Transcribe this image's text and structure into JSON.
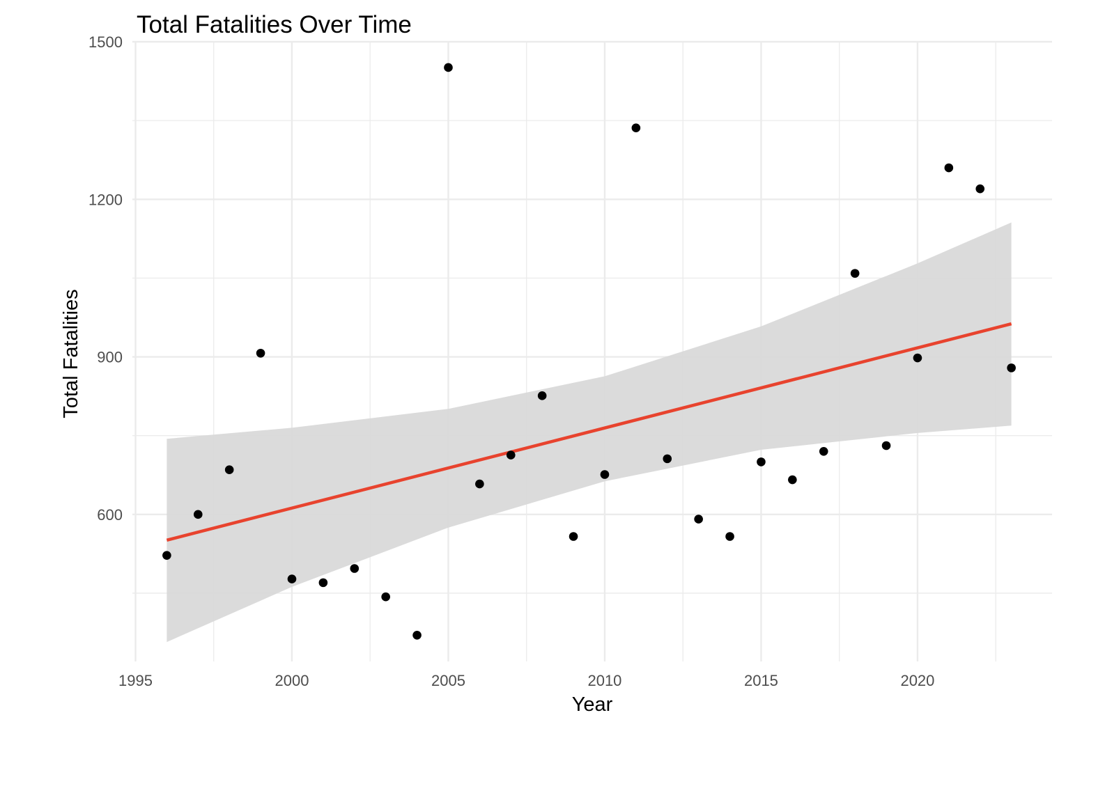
{
  "chart_data": {
    "type": "scatter",
    "title": "Total Fatalities Over Time",
    "xlabel": "Year",
    "ylabel": "Total Fatalities",
    "xlim": [
      1994.9,
      2024.3
    ],
    "ylim": [
      320,
      1500
    ],
    "x_ticks": [
      1995,
      2000,
      2005,
      2010,
      2015,
      2020
    ],
    "y_ticks": [
      600,
      900,
      1200,
      1500
    ],
    "grid": true,
    "legend": "none",
    "colors": {
      "points": "#000000",
      "trend": "#e8432e",
      "band": "#d9d9d9",
      "grid": "#ebebeb"
    },
    "points": [
      {
        "x": 1996,
        "y": 522
      },
      {
        "x": 1997,
        "y": 600
      },
      {
        "x": 1998,
        "y": 685
      },
      {
        "x": 1999,
        "y": 907
      },
      {
        "x": 2000,
        "y": 477
      },
      {
        "x": 2001,
        "y": 470
      },
      {
        "x": 2002,
        "y": 497
      },
      {
        "x": 2003,
        "y": 443
      },
      {
        "x": 2004,
        "y": 370
      },
      {
        "x": 2005,
        "y": 1451
      },
      {
        "x": 2006,
        "y": 658
      },
      {
        "x": 2007,
        "y": 713
      },
      {
        "x": 2008,
        "y": 826
      },
      {
        "x": 2009,
        "y": 558
      },
      {
        "x": 2010,
        "y": 676
      },
      {
        "x": 2011,
        "y": 1336
      },
      {
        "x": 2012,
        "y": 706
      },
      {
        "x": 2013,
        "y": 591
      },
      {
        "x": 2014,
        "y": 558
      },
      {
        "x": 2015,
        "y": 700
      },
      {
        "x": 2016,
        "y": 666
      },
      {
        "x": 2017,
        "y": 720
      },
      {
        "x": 2018,
        "y": 1059
      },
      {
        "x": 2019,
        "y": 731
      },
      {
        "x": 2020,
        "y": 898
      },
      {
        "x": 2021,
        "y": 1260
      },
      {
        "x": 2022,
        "y": 1220
      },
      {
        "x": 2023,
        "y": 879
      }
    ],
    "trend_line": {
      "method": "linear",
      "start": {
        "x": 1996,
        "y": 551
      },
      "end": {
        "x": 2023,
        "y": 963
      },
      "confidence_band": [
        {
          "x": 1996,
          "lower": 357,
          "upper": 744
        },
        {
          "x": 2000,
          "lower": 462,
          "upper": 765
        },
        {
          "x": 2005,
          "lower": 575,
          "upper": 801
        },
        {
          "x": 2010,
          "lower": 663,
          "upper": 863
        },
        {
          "x": 2015,
          "lower": 723,
          "upper": 958
        },
        {
          "x": 2020,
          "lower": 755,
          "upper": 1078
        },
        {
          "x": 2023,
          "lower": 769,
          "upper": 1156
        }
      ]
    }
  }
}
